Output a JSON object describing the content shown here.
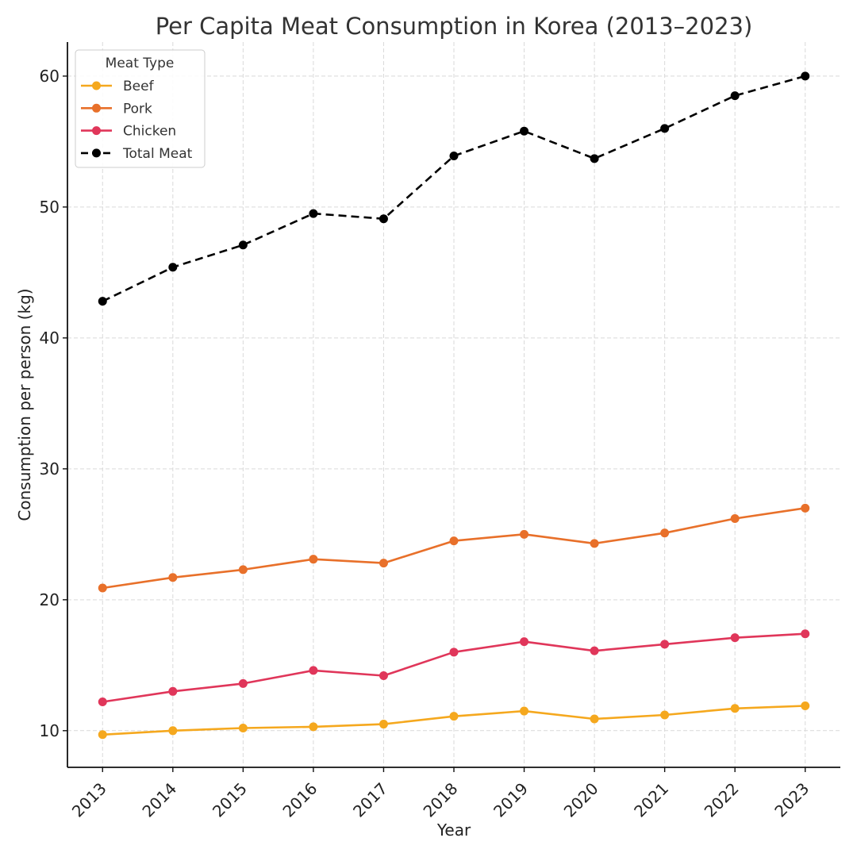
{
  "chart_data": {
    "type": "line",
    "title": "Per Capita Meat Consumption in Korea (2013–2023)",
    "xlabel": "Year",
    "ylabel": "Consumption per person (kg)",
    "x": [
      2013,
      2014,
      2015,
      2016,
      2017,
      2018,
      2019,
      2020,
      2021,
      2022,
      2023
    ],
    "x_tick_labels": [
      "2013",
      "2014",
      "2015",
      "2016",
      "2017",
      "2018",
      "2019",
      "2020",
      "2021",
      "2022",
      "2023"
    ],
    "y_ticks": [
      10,
      20,
      30,
      40,
      50,
      60
    ],
    "y_tick_labels": [
      "10",
      "20",
      "30",
      "40",
      "50",
      "60"
    ],
    "xlim": [
      2012.5,
      2023.5
    ],
    "ylim": [
      7.2,
      62.6
    ],
    "grid": true,
    "legend": {
      "title": "Meat Type",
      "placement": "top-left"
    },
    "series": [
      {
        "name": "Beef",
        "color": "#F5A81E",
        "line_style": "solid",
        "marker": "circle",
        "values": [
          9.7,
          10.0,
          10.2,
          10.3,
          10.5,
          11.1,
          11.5,
          10.9,
          11.2,
          11.7,
          11.9
        ]
      },
      {
        "name": "Pork",
        "color": "#E8702A",
        "line_style": "solid",
        "marker": "circle",
        "values": [
          20.9,
          21.7,
          22.3,
          23.1,
          22.8,
          24.5,
          25.0,
          24.3,
          25.1,
          26.2,
          27.0
        ]
      },
      {
        "name": "Chicken",
        "color": "#E0365A",
        "line_style": "solid",
        "marker": "circle",
        "values": [
          12.2,
          13.0,
          13.6,
          14.6,
          14.2,
          16.0,
          16.8,
          16.1,
          16.6,
          17.1,
          17.4
        ]
      },
      {
        "name": "Total Meat",
        "color": "#000000",
        "line_style": "dashed",
        "marker": "circle",
        "values": [
          42.8,
          45.4,
          47.1,
          49.5,
          49.1,
          53.9,
          55.8,
          53.7,
          56.0,
          58.5,
          60.0
        ]
      }
    ]
  }
}
